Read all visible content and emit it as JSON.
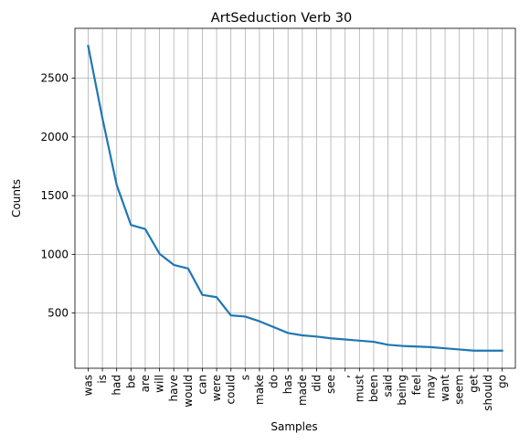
{
  "chart_data": {
    "type": "line",
    "title": "ArtSeduction Verb 30",
    "xlabel": "Samples",
    "ylabel": "Counts",
    "categories": [
      "was",
      "is",
      "had",
      "be",
      "are",
      "will",
      "have",
      "would",
      "can",
      "were",
      "could",
      "s",
      "make",
      "do",
      "has",
      "made",
      "did",
      "see",
      ",",
      "must",
      "been",
      "said",
      "being",
      "feel",
      "may",
      "want",
      "seem",
      "get",
      "should",
      "go"
    ],
    "series": [
      {
        "values": [
          2775,
          2160,
          1590,
          1250,
          1215,
          1005,
          910,
          880,
          655,
          635,
          480,
          470,
          430,
          380,
          330,
          310,
          300,
          285,
          275,
          265,
          255,
          230,
          220,
          215,
          210,
          200,
          190,
          180,
          180,
          180
        ]
      }
    ],
    "yticks": [
      500,
      1000,
      1500,
      2000,
      2500
    ],
    "ylim": [
      30,
      2925
    ],
    "grid": true,
    "colors": {
      "line": "#1f77b4",
      "grid": "#b0b0b0"
    }
  }
}
